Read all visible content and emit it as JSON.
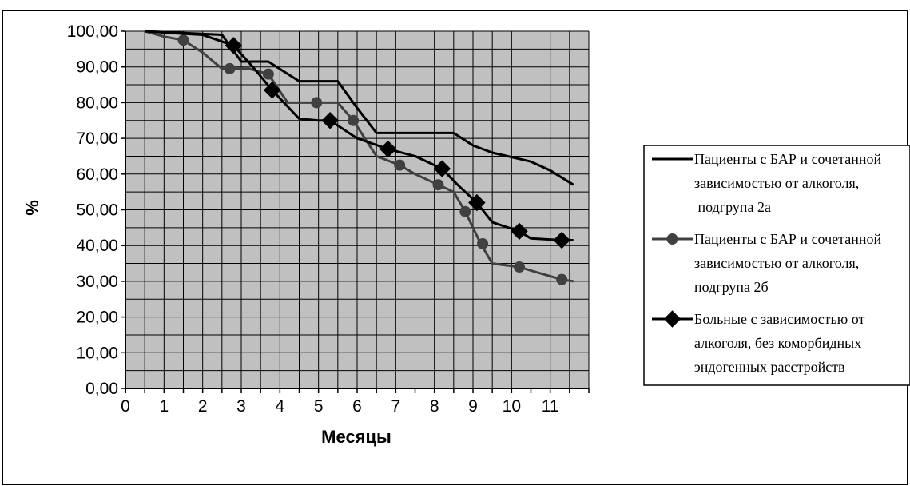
{
  "chart_data": {
    "type": "line",
    "xlabel": "Месяцы",
    "ylabel": "%",
    "xlim": [
      0,
      12
    ],
    "ylim": [
      0,
      100
    ],
    "x_ticks": [
      "0",
      "1",
      "2",
      "3",
      "4",
      "5",
      "6",
      "7",
      "8",
      "9",
      "10",
      "11"
    ],
    "y_ticks": [
      "0,00",
      "10,00",
      "20,00",
      "30,00",
      "40,00",
      "50,00",
      "60,00",
      "70,00",
      "80,00",
      "90,00",
      "100,00"
    ],
    "grid": true,
    "plot_background": "#c0c0c0",
    "legend_position": "right",
    "series": [
      {
        "name": "Пациенты с БАР и сочетанной зависимостью от алкоголя, подгрупа 2а",
        "legend_lines": [
          "Пациенты с БАР и сочетанной",
          "зависимостью от алкоголя,",
          " подгрупа 2а"
        ],
        "color": "#000000",
        "marker": "none",
        "x": [
          0.5,
          2.5,
          2.7,
          3.0,
          3.7,
          4.5,
          5.5,
          6.0,
          6.5,
          8.5,
          9.0,
          9.5,
          10.5,
          11.0,
          11.6
        ],
        "y": [
          100,
          99,
          96,
          91.5,
          91.5,
          86,
          86,
          78.5,
          71.5,
          71.5,
          68,
          66,
          63.5,
          61,
          57
        ]
      },
      {
        "name": "Пациенты с БАР и сочетанной зависимостью от алкоголя, подгрупа 2б",
        "legend_lines": [
          "Пациенты с БАР и сочетанной",
          "зависимостью от алкоголя,",
          "подгрупа 2б"
        ],
        "color": "#404040",
        "marker": "circle",
        "x": [
          0.5,
          1.0,
          1.5,
          2.0,
          2.5,
          3.2,
          3.7,
          4.2,
          5.0,
          5.5,
          5.9,
          6.5,
          7.1,
          7.5,
          8.1,
          8.5,
          8.8,
          9.2,
          9.5,
          10.2,
          10.5,
          11.3,
          11.6
        ],
        "y": [
          100,
          98.5,
          97.5,
          94,
          89.5,
          89.5,
          88,
          80,
          80,
          80,
          75,
          65,
          62.5,
          60,
          57,
          55,
          49.5,
          40.5,
          35,
          34,
          33,
          30.5,
          30
        ],
        "marker_points": [
          [
            1.5,
            97.5
          ],
          [
            2.7,
            89.5
          ],
          [
            3.7,
            88
          ],
          [
            4.95,
            80
          ],
          [
            5.9,
            75
          ],
          [
            7.1,
            62.5
          ],
          [
            8.1,
            57
          ],
          [
            8.8,
            49.5
          ],
          [
            9.25,
            40.5
          ],
          [
            10.2,
            34
          ],
          [
            11.3,
            30.5
          ]
        ]
      },
      {
        "name": "Больные с зависимостью от алкоголя, без коморбидных эндогенных расстройств",
        "legend_lines": [
          "Больные с зависимостью от",
          "алкоголя, без коморбидных",
          "эндогенных расстройств"
        ],
        "color": "#000000",
        "marker": "diamond",
        "x": [
          0.5,
          1.2,
          2.0,
          2.8,
          3.3,
          3.8,
          4.5,
          5.0,
          5.3,
          6.0,
          6.8,
          7.5,
          8.2,
          8.6,
          9.1,
          9.5,
          10.2,
          10.5,
          11.3,
          11.6
        ],
        "y": [
          100,
          99.5,
          99,
          96,
          90,
          83.5,
          75.5,
          75,
          75,
          70,
          67,
          65,
          61.5,
          57,
          52,
          46.5,
          44,
          42,
          41.5,
          41.5
        ],
        "marker_points": [
          [
            2.8,
            96
          ],
          [
            3.8,
            83.5
          ],
          [
            5.3,
            75
          ],
          [
            6.8,
            67
          ],
          [
            8.2,
            61.5
          ],
          [
            9.1,
            52
          ],
          [
            10.2,
            44
          ],
          [
            11.3,
            41.5
          ]
        ]
      }
    ]
  }
}
